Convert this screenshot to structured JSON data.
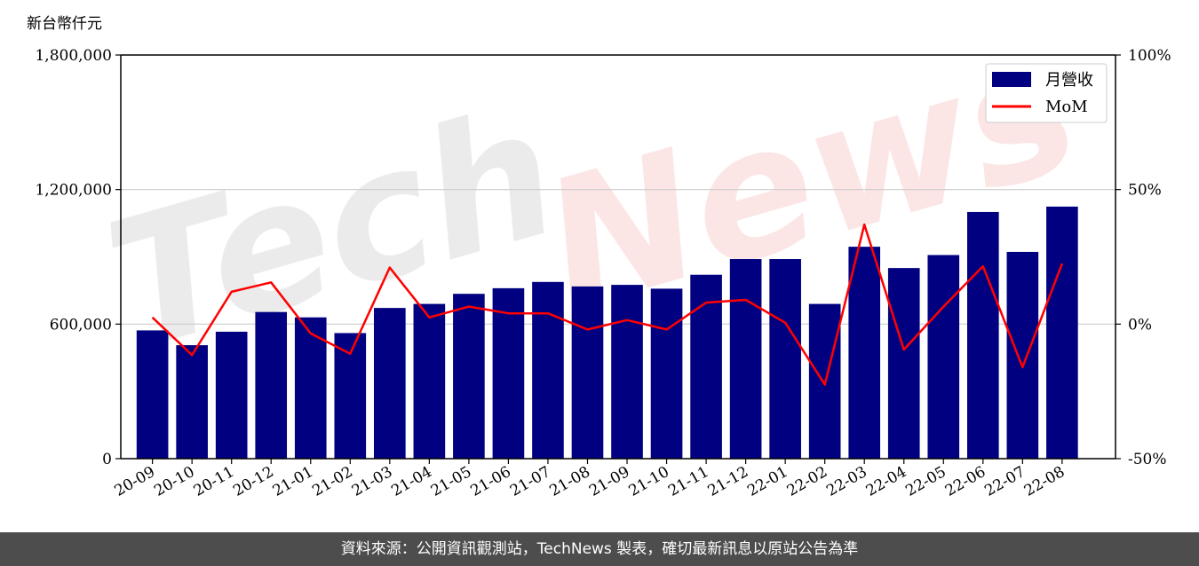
{
  "watermark": {
    "part1": "Tech",
    "part2": "News"
  },
  "chart_data": {
    "type": "bar",
    "unit_label": "新台幣仟元",
    "categories": [
      "20-09",
      "20-10",
      "20-11",
      "20-12",
      "21-01",
      "21-02",
      "21-03",
      "21-04",
      "21-05",
      "21-06",
      "21-07",
      "21-08",
      "21-09",
      "21-10",
      "21-11",
      "21-12",
      "22-01",
      "22-02",
      "22-03",
      "22-04",
      "22-05",
      "22-06",
      "22-07",
      "22-08"
    ],
    "series": [
      {
        "name": "月營收",
        "axis": "left",
        "type": "bar",
        "color": "#000080",
        "values": [
          572000,
          506000,
          566000,
          654000,
          630000,
          560000,
          672000,
          690000,
          735000,
          760000,
          788000,
          768000,
          775000,
          758000,
          820000,
          890000,
          890000,
          690000,
          945000,
          850000,
          908000,
          1100000,
          922000,
          1124000
        ]
      },
      {
        "name": "MoM",
        "axis": "right",
        "type": "line",
        "color": "#ff0000",
        "unit": "%",
        "values": [
          2.5,
          -11.5,
          12.0,
          15.5,
          -3.5,
          -11.0,
          21.0,
          2.5,
          6.5,
          4.0,
          4.0,
          -2.0,
          1.5,
          -2.0,
          8.0,
          9.0,
          0.5,
          -22.5,
          37.0,
          -9.5,
          6.5,
          21.5,
          -16.0,
          22.5
        ]
      }
    ],
    "yleft": {
      "ylim": [
        0,
        1800000
      ],
      "ticks": [
        "0",
        "600,000",
        "1,200,000",
        "1,800,000"
      ],
      "tick_values": [
        0,
        600000,
        1200000,
        1800000
      ]
    },
    "yright": {
      "ylim": [
        -50,
        100
      ],
      "ticks": [
        "-50%",
        "0%",
        "50%",
        "100%"
      ],
      "tick_values": [
        -50,
        0,
        50,
        100
      ]
    },
    "grid": "horizontal",
    "legend": "top-right"
  },
  "footer": {
    "text": "資料來源：公開資訊觀測站，TechNews 製表，確切最新訊息以原站公告為準"
  }
}
